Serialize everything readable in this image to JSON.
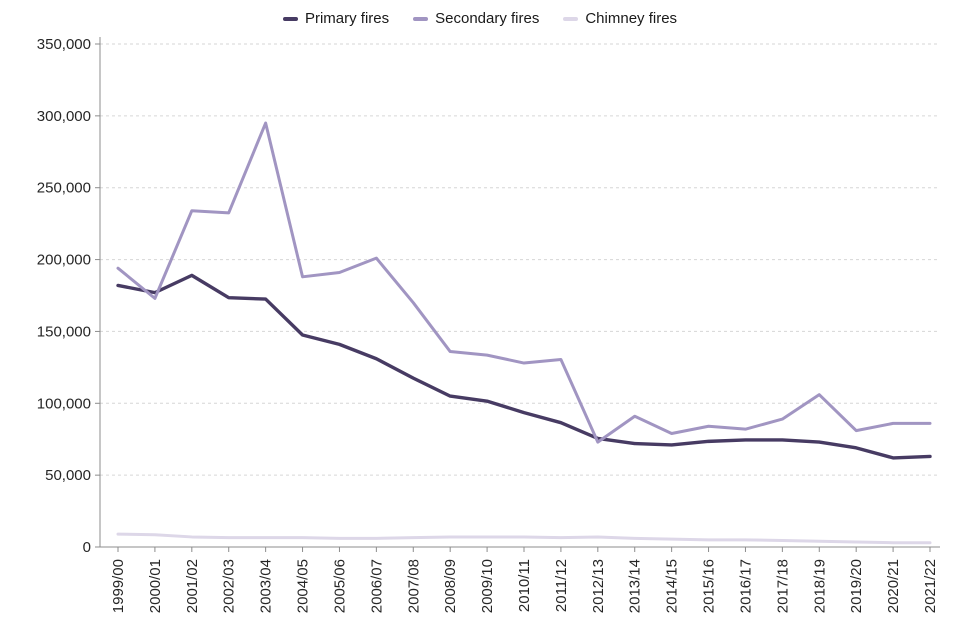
{
  "legend": {
    "position": "top-center"
  },
  "chart_data": {
    "type": "line",
    "title": "",
    "xlabel": "",
    "ylabel": "",
    "ylim": [
      0,
      350000
    ],
    "ytick_step": 50000,
    "grid": "dashed-horizontal",
    "legend_position": "top",
    "axis_color": "#8c8c8c",
    "gridline_color": "#d6d6d6",
    "categories": [
      "1999/00",
      "2000/01",
      "2001/02",
      "2002/03",
      "2003/04",
      "2004/05",
      "2005/06",
      "2006/07",
      "2007/08",
      "2008/09",
      "2009/10",
      "2010/11",
      "2011/12",
      "2012/13",
      "2013/14",
      "2014/15",
      "2015/16",
      "2016/17",
      "2017/18",
      "2018/19",
      "2019/20",
      "2020/21",
      "2021/22"
    ],
    "series": [
      {
        "name": "Primary fires",
        "color": "#473b63",
        "values": [
          182000,
          177000,
          189000,
          173500,
          172500,
          147500,
          141000,
          131000,
          117500,
          105000,
          101500,
          93500,
          86500,
          75500,
          72000,
          71000,
          73500,
          74500,
          74500,
          73000,
          69000,
          62000,
          63000
        ]
      },
      {
        "name": "Secondary fires",
        "color": "#a195c2",
        "values": [
          194000,
          173000,
          234000,
          232500,
          295000,
          188000,
          191000,
          201000,
          170000,
          136000,
          133500,
          128000,
          130500,
          73000,
          91000,
          79000,
          84000,
          82000,
          89000,
          106000,
          81000,
          86000,
          86000
        ]
      },
      {
        "name": "Chimney fires",
        "color": "#ddd7e8",
        "values": [
          9000,
          8500,
          7000,
          6500,
          6500,
          6500,
          6000,
          6000,
          6500,
          7000,
          7000,
          7000,
          6500,
          7000,
          6000,
          5500,
          5000,
          5000,
          4500,
          4000,
          3500,
          3000,
          3000
        ]
      }
    ]
  }
}
